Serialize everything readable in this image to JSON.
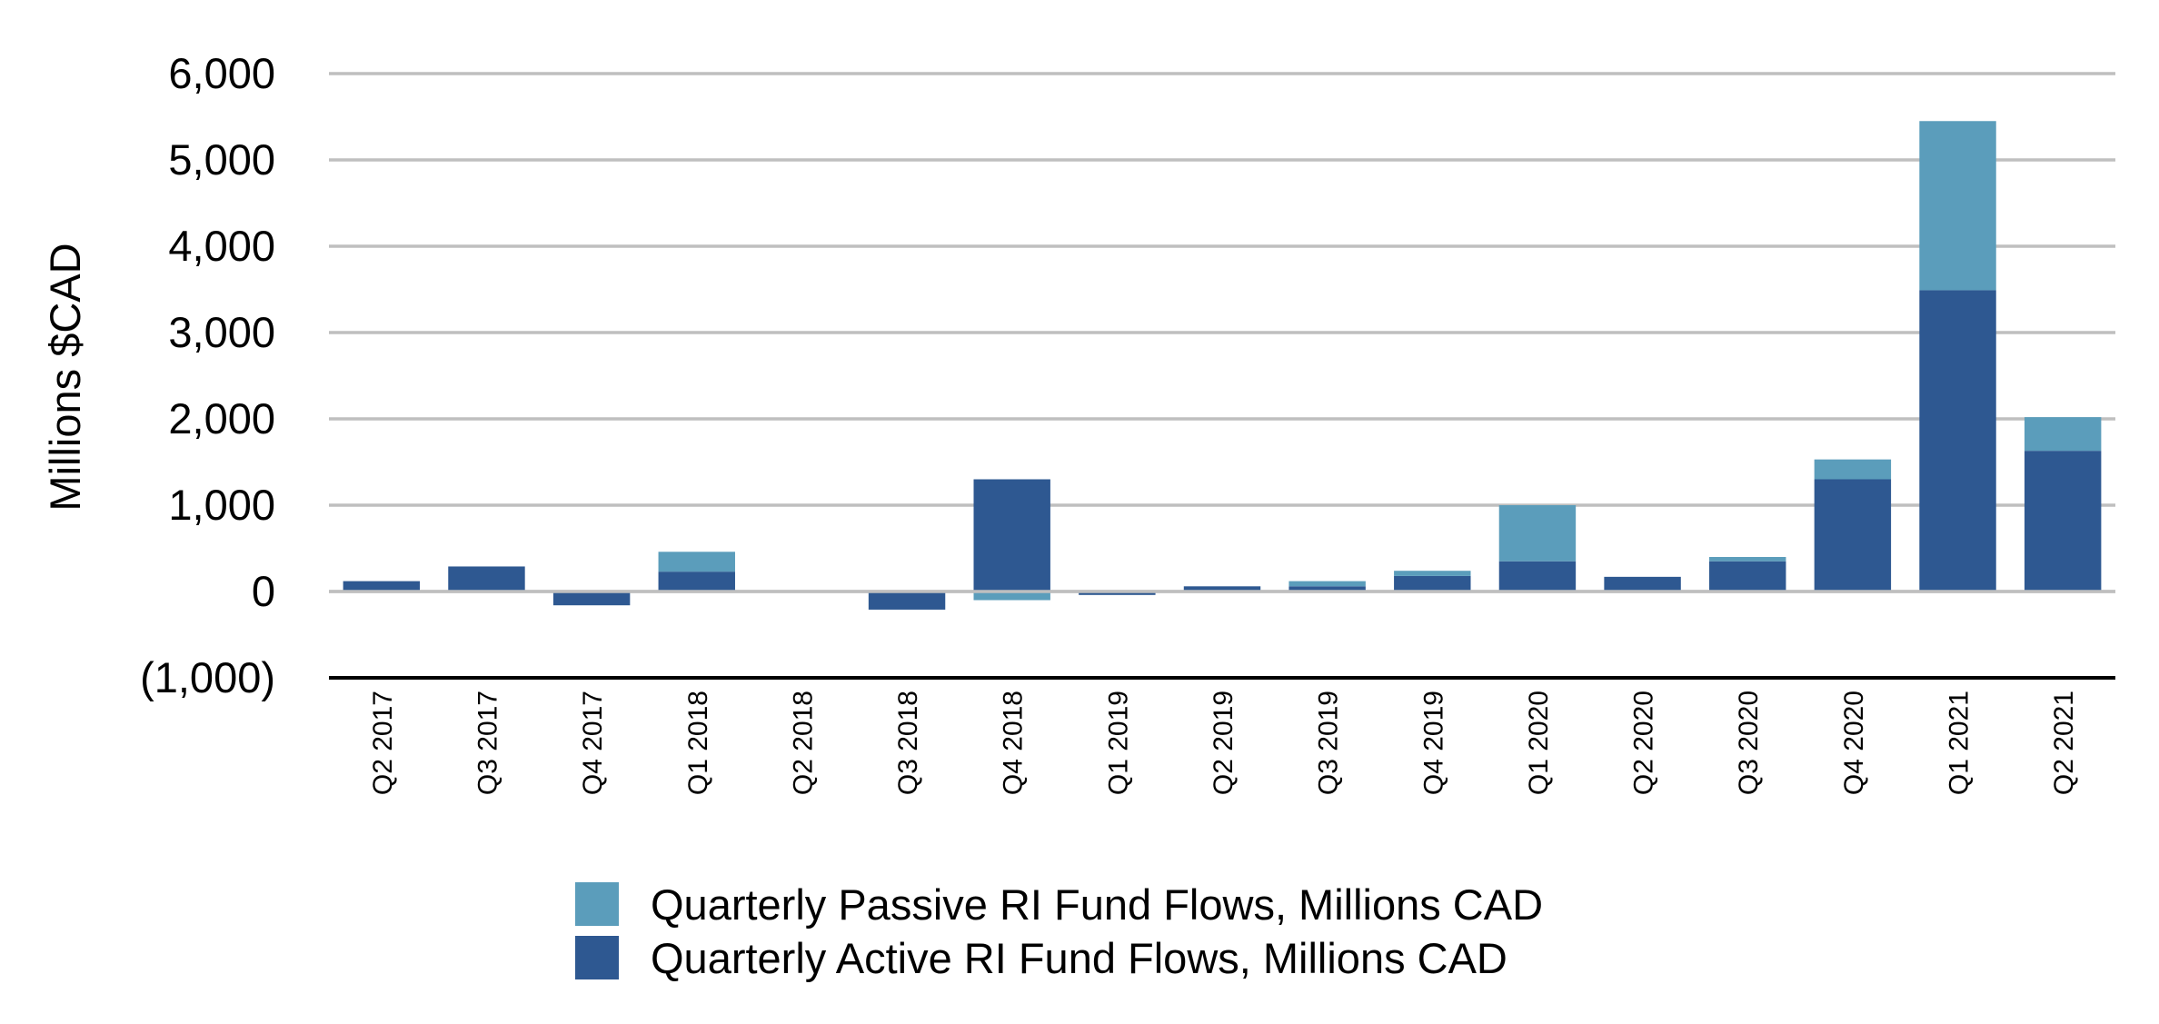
{
  "colors": {
    "passive": "#5B9DBB",
    "active": "#2E5891",
    "grid": "#BFBFBF",
    "axis": "#000000"
  },
  "chart_data": {
    "type": "bar",
    "stacked": true,
    "title": "",
    "xlabel": "",
    "ylabel": "Millions $CAD",
    "ylim": [
      -1000,
      6000
    ],
    "yticks": [
      -1000,
      0,
      1000,
      2000,
      3000,
      4000,
      5000,
      6000
    ],
    "ytick_labels": [
      "(1,000)",
      "0",
      "1,000",
      "2,000",
      "3,000",
      "4,000",
      "5,000",
      "6,000"
    ],
    "grid": true,
    "legend_position": "bottom",
    "categories": [
      "Q2 2017",
      "Q3 2017",
      "Q4 2017",
      "Q1 2018",
      "Q2 2018",
      "Q3 2018",
      "Q4 2018",
      "Q1 2019",
      "Q2 2019",
      "Q3 2019",
      "Q4 2019",
      "Q1 2020",
      "Q2 2020",
      "Q3 2020",
      "Q4 2020",
      "Q1 2021",
      "Q2 2021"
    ],
    "series": [
      {
        "name": "Quarterly Passive RI Fund Flows, Millions CAD",
        "values": [
          0,
          0,
          0,
          230,
          0,
          0,
          -100,
          0,
          0,
          60,
          60,
          650,
          0,
          50,
          230,
          1960,
          390
        ]
      },
      {
        "name": "Quarterly Active RI Fund Flows, Millions CAD",
        "values": [
          120,
          290,
          -160,
          230,
          0,
          -210,
          1300,
          -40,
          60,
          60,
          180,
          350,
          170,
          350,
          1300,
          3490,
          1630
        ]
      }
    ]
  }
}
